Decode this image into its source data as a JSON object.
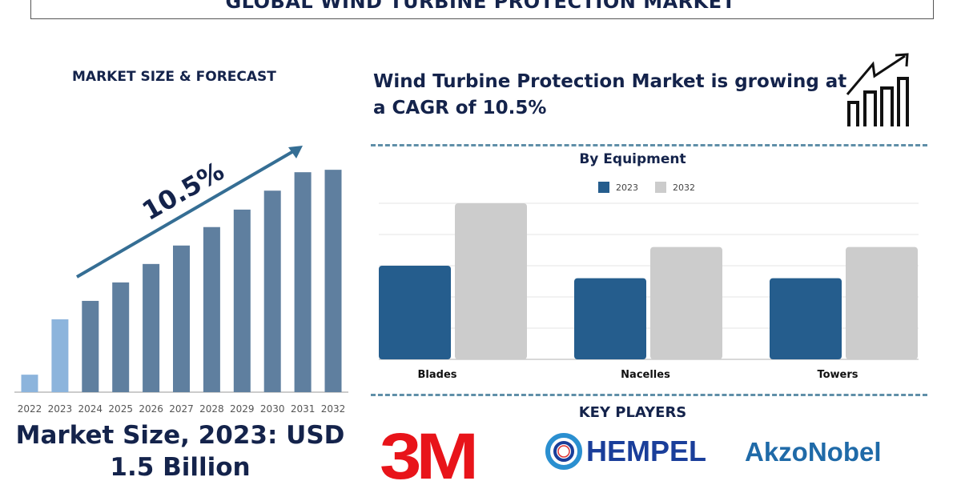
{
  "header": {
    "title": "GLOBAL WIND TURBINE PROTECTION MARKET"
  },
  "left": {
    "heading": "MARKET SIZE & FORECAST",
    "cagr_label": "10.5%",
    "market_size": "Market Size, 2023: USD 1.5 Billion"
  },
  "right": {
    "headline": "Wind Turbine Protection Market is growing at a CAGR of 10.5%",
    "icon": "growth-chart-icon",
    "key_players_heading": "KEY PLAYERS",
    "key_players": [
      "3M",
      "HEMPEL",
      "AkzoNobel"
    ]
  },
  "colors": {
    "forecast_bar": "#5f7f9f",
    "historic_bar": "#8cb4dc",
    "series_2023": "#255d8d",
    "series_2032": "#cccccc",
    "arrow": "#356e94",
    "text": "#14234b"
  },
  "chart_data": [
    {
      "type": "bar",
      "title": "",
      "categories": [
        "2022",
        "2023",
        "2024",
        "2025",
        "2026",
        "2027",
        "2028",
        "2029",
        "2030",
        "2031",
        "2032"
      ],
      "values": [
        0.36,
        1.5,
        1.88,
        2.26,
        2.64,
        3.02,
        3.4,
        3.76,
        4.15,
        4.53,
        4.58
      ],
      "ylabel": "",
      "xlabel": "",
      "annotation": "10.5%",
      "grid": false
    },
    {
      "type": "bar",
      "title": "By Equipment",
      "categories": [
        "Blades",
        "Nacelles",
        "Towers"
      ],
      "series": [
        {
          "name": "2023",
          "values": [
            3.0,
            2.6,
            2.6
          ]
        },
        {
          "name": "2032",
          "values": [
            5.0,
            3.6,
            3.6
          ]
        }
      ],
      "ylim": [
        0,
        5
      ],
      "grid": true,
      "legend": "top-center"
    }
  ]
}
